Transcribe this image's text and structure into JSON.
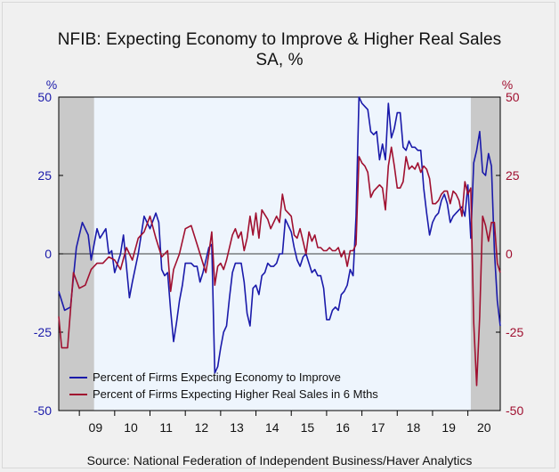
{
  "title_line1": "NFIB: Expecting Economy to Improve & Higher Real Sales",
  "title_line2": "SA, %",
  "source": "Source:  National Federation of Independent Business/Haver Analytics",
  "colors": {
    "series1": "#1a1aaa",
    "series2": "#a01030",
    "plot_bg": "#eef5fd",
    "recession": "#c9c9c9",
    "page_bg": "#f0f0f0"
  },
  "chart_data": {
    "type": "line",
    "x_axis": {
      "ticks": [
        "09",
        "10",
        "11",
        "12",
        "13",
        "14",
        "15",
        "16",
        "17",
        "18",
        "19",
        "20"
      ],
      "range": [
        "2008-06",
        "2020-12"
      ]
    },
    "y_left": {
      "unit_label": "%",
      "ylim": [
        -50,
        50
      ],
      "ticks": [
        "50",
        "25",
        "0",
        "-25",
        "-50"
      ],
      "color": "#1a1aaa"
    },
    "y_right": {
      "unit_label": "%",
      "ylim": [
        -50,
        50
      ],
      "ticks": [
        "50",
        "25",
        "0",
        "-25",
        "-50"
      ],
      "color": "#a01030"
    },
    "recessions": [
      [
        "2008-06",
        "2009-06"
      ],
      [
        "2020-02",
        "2020-12"
      ]
    ],
    "legend_position": "bottom-left",
    "series": [
      {
        "name": "Percent of Firms Expecting Economy to Improve",
        "color": "#1a1aaa",
        "points": [
          [
            "2008-06",
            -12
          ],
          [
            "2008-08",
            -18
          ],
          [
            "2008-10",
            -17
          ],
          [
            "2008-12",
            2
          ],
          [
            "2009-02",
            10
          ],
          [
            "2009-04",
            6
          ],
          [
            "2009-05",
            -2
          ],
          [
            "2009-07",
            8
          ],
          [
            "2009-08",
            5
          ],
          [
            "2009-10",
            8
          ],
          [
            "2009-11",
            0
          ],
          [
            "2009-12",
            1
          ],
          [
            "2010-01",
            -6
          ],
          [
            "2010-03",
            0
          ],
          [
            "2010-04",
            6
          ],
          [
            "2010-06",
            -14
          ],
          [
            "2010-07",
            -9
          ],
          [
            "2010-09",
            0
          ],
          [
            "2010-11",
            12
          ],
          [
            "2011-01",
            8
          ],
          [
            "2011-03",
            13
          ],
          [
            "2011-04",
            10
          ],
          [
            "2011-05",
            -5
          ],
          [
            "2011-06",
            -7
          ],
          [
            "2011-07",
            -6
          ],
          [
            "2011-08",
            -18
          ],
          [
            "2011-09",
            -28
          ],
          [
            "2011-10",
            -22
          ],
          [
            "2011-11",
            -15
          ],
          [
            "2011-12",
            -10
          ],
          [
            "2012-01",
            -3
          ],
          [
            "2012-02",
            -3
          ],
          [
            "2012-03",
            -3
          ],
          [
            "2012-04",
            -4
          ],
          [
            "2012-05",
            -4
          ],
          [
            "2012-06",
            -9
          ],
          [
            "2012-07",
            -6
          ],
          [
            "2012-08",
            -2
          ],
          [
            "2012-09",
            2
          ],
          [
            "2012-10",
            3
          ],
          [
            "2012-11",
            -38
          ],
          [
            "2012-12",
            -36
          ],
          [
            "2013-01",
            -30
          ],
          [
            "2013-02",
            -25
          ],
          [
            "2013-03",
            -23
          ],
          [
            "2013-04",
            -14
          ],
          [
            "2013-05",
            -6
          ],
          [
            "2013-06",
            -3
          ],
          [
            "2013-07",
            -3
          ],
          [
            "2013-08",
            -3
          ],
          [
            "2013-09",
            -9
          ],
          [
            "2013-10",
            -19
          ],
          [
            "2013-11",
            -23
          ],
          [
            "2013-12",
            -11
          ],
          [
            "2014-01",
            -10
          ],
          [
            "2014-02",
            -13
          ],
          [
            "2014-03",
            -7
          ],
          [
            "2014-04",
            -6
          ],
          [
            "2014-05",
            -3
          ],
          [
            "2014-06",
            -4
          ],
          [
            "2014-07",
            -4
          ],
          [
            "2014-08",
            -3
          ],
          [
            "2014-09",
            0
          ],
          [
            "2014-10",
            0
          ],
          [
            "2014-11",
            11
          ],
          [
            "2014-12",
            9
          ],
          [
            "2015-01",
            7
          ],
          [
            "2015-02",
            2
          ],
          [
            "2015-03",
            -2
          ],
          [
            "2015-04",
            -4
          ],
          [
            "2015-05",
            -1
          ],
          [
            "2015-06",
            0
          ],
          [
            "2015-07",
            -3
          ],
          [
            "2015-08",
            -6
          ],
          [
            "2015-09",
            -5
          ],
          [
            "2015-10",
            -7
          ],
          [
            "2015-11",
            -7
          ],
          [
            "2015-12",
            -11
          ],
          [
            "2016-01",
            -21
          ],
          [
            "2016-02",
            -21
          ],
          [
            "2016-03",
            -18
          ],
          [
            "2016-04",
            -17
          ],
          [
            "2016-05",
            -18
          ],
          [
            "2016-06",
            -13
          ],
          [
            "2016-07",
            -12
          ],
          [
            "2016-08",
            -10
          ],
          [
            "2016-09",
            -5
          ],
          [
            "2016-10",
            -7
          ],
          [
            "2016-11",
            12
          ],
          [
            "2016-12",
            50
          ],
          [
            "2017-01",
            48
          ],
          [
            "2017-02",
            47
          ],
          [
            "2017-03",
            46
          ],
          [
            "2017-04",
            39
          ],
          [
            "2017-05",
            38
          ],
          [
            "2017-06",
            39
          ],
          [
            "2017-07",
            30
          ],
          [
            "2017-08",
            35
          ],
          [
            "2017-09",
            30
          ],
          [
            "2017-10",
            48
          ],
          [
            "2017-11",
            37
          ],
          [
            "2017-12",
            40
          ],
          [
            "2018-01",
            45
          ],
          [
            "2018-02",
            45
          ],
          [
            "2018-03",
            34
          ],
          [
            "2018-04",
            33
          ],
          [
            "2018-05",
            36
          ],
          [
            "2018-06",
            34
          ],
          [
            "2018-07",
            34
          ],
          [
            "2018-08",
            33
          ],
          [
            "2018-09",
            33
          ],
          [
            "2018-10",
            21
          ],
          [
            "2018-11",
            13
          ],
          [
            "2018-12",
            6
          ],
          [
            "2019-01",
            10
          ],
          [
            "2019-02",
            12
          ],
          [
            "2019-03",
            13
          ],
          [
            "2019-04",
            17
          ],
          [
            "2019-05",
            19
          ],
          [
            "2019-06",
            16
          ],
          [
            "2019-07",
            10
          ],
          [
            "2019-08",
            12
          ],
          [
            "2019-09",
            13
          ],
          [
            "2019-10",
            14
          ],
          [
            "2019-11",
            15
          ],
          [
            "2019-12",
            12
          ],
          [
            "2020-01",
            22
          ],
          [
            "2020-02",
            5
          ],
          [
            "2020-03",
            29
          ],
          [
            "2020-04",
            33
          ],
          [
            "2020-05",
            39
          ],
          [
            "2020-06",
            26
          ],
          [
            "2020-07",
            25
          ],
          [
            "2020-08",
            32
          ],
          [
            "2020-09",
            28
          ],
          [
            "2020-10",
            1
          ],
          [
            "2020-11",
            -15
          ],
          [
            "2020-12",
            -23
          ]
        ]
      },
      {
        "name": "Percent of Firms Expecting Higher Real Sales in 6 Mths",
        "color": "#a01030",
        "points": [
          [
            "2008-06",
            -20
          ],
          [
            "2008-07",
            -30
          ],
          [
            "2008-09",
            -30
          ],
          [
            "2008-11",
            -6
          ],
          [
            "2009-01",
            -11
          ],
          [
            "2009-03",
            -10
          ],
          [
            "2009-05",
            -5
          ],
          [
            "2009-07",
            -3
          ],
          [
            "2009-09",
            -3
          ],
          [
            "2009-11",
            -1
          ],
          [
            "2010-01",
            -2
          ],
          [
            "2010-03",
            -5
          ],
          [
            "2010-05",
            2
          ],
          [
            "2010-07",
            -2
          ],
          [
            "2010-09",
            5
          ],
          [
            "2010-11",
            7
          ],
          [
            "2011-01",
            12
          ],
          [
            "2011-03",
            5
          ],
          [
            "2011-05",
            -1
          ],
          [
            "2011-07",
            1
          ],
          [
            "2011-08",
            -12
          ],
          [
            "2011-09",
            -5
          ],
          [
            "2011-11",
            0
          ],
          [
            "2012-01",
            8
          ],
          [
            "2012-03",
            9
          ],
          [
            "2012-05",
            3
          ],
          [
            "2012-07",
            -3
          ],
          [
            "2012-08",
            -6
          ],
          [
            "2012-09",
            0
          ],
          [
            "2012-10",
            7
          ],
          [
            "2012-11",
            -10
          ],
          [
            "2012-12",
            -4
          ],
          [
            "2013-01",
            -3
          ],
          [
            "2013-02",
            -5
          ],
          [
            "2013-03",
            -2
          ],
          [
            "2013-05",
            6
          ],
          [
            "2013-06",
            8
          ],
          [
            "2013-07",
            5
          ],
          [
            "2013-08",
            7
          ],
          [
            "2013-09",
            1
          ],
          [
            "2013-10",
            5
          ],
          [
            "2013-11",
            12
          ],
          [
            "2013-12",
            6
          ],
          [
            "2014-01",
            13
          ],
          [
            "2014-02",
            5
          ],
          [
            "2014-03",
            14
          ],
          [
            "2014-05",
            11
          ],
          [
            "2014-06",
            8
          ],
          [
            "2014-07",
            10
          ],
          [
            "2014-08",
            12
          ],
          [
            "2014-09",
            10
          ],
          [
            "2014-10",
            19
          ],
          [
            "2014-11",
            14
          ],
          [
            "2014-12",
            13
          ],
          [
            "2015-01",
            12
          ],
          [
            "2015-02",
            6
          ],
          [
            "2015-03",
            5
          ],
          [
            "2015-04",
            8
          ],
          [
            "2015-05",
            4
          ],
          [
            "2015-06",
            0
          ],
          [
            "2015-07",
            7
          ],
          [
            "2015-08",
            4
          ],
          [
            "2015-09",
            6
          ],
          [
            "2015-10",
            2
          ],
          [
            "2015-11",
            2
          ],
          [
            "2015-12",
            1
          ],
          [
            "2016-01",
            1
          ],
          [
            "2016-02",
            2
          ],
          [
            "2016-03",
            1
          ],
          [
            "2016-04",
            1
          ],
          [
            "2016-05",
            2
          ],
          [
            "2016-06",
            -1
          ],
          [
            "2016-07",
            1
          ],
          [
            "2016-08",
            -4
          ],
          [
            "2016-09",
            1
          ],
          [
            "2016-10",
            1
          ],
          [
            "2016-11",
            3
          ],
          [
            "2016-12",
            31
          ],
          [
            "2017-01",
            29
          ],
          [
            "2017-02",
            28
          ],
          [
            "2017-03",
            26
          ],
          [
            "2017-04",
            18
          ],
          [
            "2017-05",
            20
          ],
          [
            "2017-06",
            21
          ],
          [
            "2017-07",
            22
          ],
          [
            "2017-08",
            21
          ],
          [
            "2017-09",
            14
          ],
          [
            "2017-10",
            28
          ],
          [
            "2017-11",
            34
          ],
          [
            "2017-12",
            28
          ],
          [
            "2018-01",
            21
          ],
          [
            "2018-02",
            21
          ],
          [
            "2018-03",
            23
          ],
          [
            "2018-04",
            31
          ],
          [
            "2018-05",
            27
          ],
          [
            "2018-06",
            28
          ],
          [
            "2018-07",
            27
          ],
          [
            "2018-08",
            29
          ],
          [
            "2018-09",
            26
          ],
          [
            "2018-10",
            28
          ],
          [
            "2018-11",
            27
          ],
          [
            "2018-12",
            24
          ],
          [
            "2019-01",
            16
          ],
          [
            "2019-02",
            16
          ],
          [
            "2019-03",
            17
          ],
          [
            "2019-04",
            19
          ],
          [
            "2019-05",
            20
          ],
          [
            "2019-06",
            20
          ],
          [
            "2019-07",
            16
          ],
          [
            "2019-08",
            20
          ],
          [
            "2019-09",
            19
          ],
          [
            "2019-10",
            17
          ],
          [
            "2019-11",
            12
          ],
          [
            "2019-12",
            23
          ],
          [
            "2020-01",
            19
          ],
          [
            "2020-02",
            21
          ],
          [
            "2020-03",
            -22
          ],
          [
            "2020-04",
            -42
          ],
          [
            "2020-05",
            -20
          ],
          [
            "2020-06",
            12
          ],
          [
            "2020-07",
            9
          ],
          [
            "2020-08",
            4
          ],
          [
            "2020-09",
            10
          ],
          [
            "2020-10",
            10
          ],
          [
            "2020-11",
            -3
          ],
          [
            "2020-12",
            -6
          ]
        ]
      }
    ]
  }
}
